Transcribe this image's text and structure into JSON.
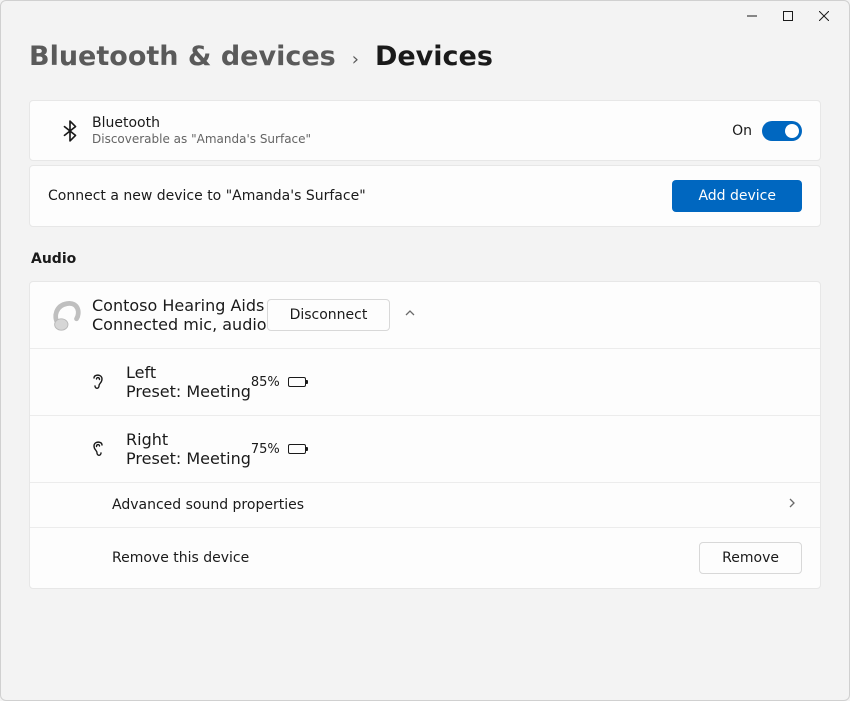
{
  "breadcrumb": {
    "parent": "Bluetooth & devices",
    "current": "Devices"
  },
  "bluetooth": {
    "title": "Bluetooth",
    "subtitle": "Discoverable as \"Amanda's Surface\"",
    "state_label": "On",
    "toggle_on": true,
    "accent_color": "#0067c0"
  },
  "connect": {
    "text": "Connect a new device to \"Amanda's Surface\"",
    "button": "Add device"
  },
  "audio_section": {
    "header": "Audio"
  },
  "device": {
    "name": "Contoso Hearing Aids",
    "status": "Connected mic, audio",
    "disconnect_label": "Disconnect",
    "left": {
      "label": "Left",
      "preset": "Preset: Meeting",
      "battery_pct": "85%",
      "battery_fill": 0.85
    },
    "right": {
      "label": "Right",
      "preset": "Preset: Meeting",
      "battery_pct": "75%",
      "battery_fill": 0.75
    },
    "advanced": "Advanced sound properties",
    "remove_text": "Remove this device",
    "remove_button": "Remove"
  },
  "colors": {
    "background": "#f3f3f3",
    "card": "#fdfdfd",
    "border": "#e7e7e7",
    "text_secondary": "#646464",
    "accent": "#0067c0"
  }
}
